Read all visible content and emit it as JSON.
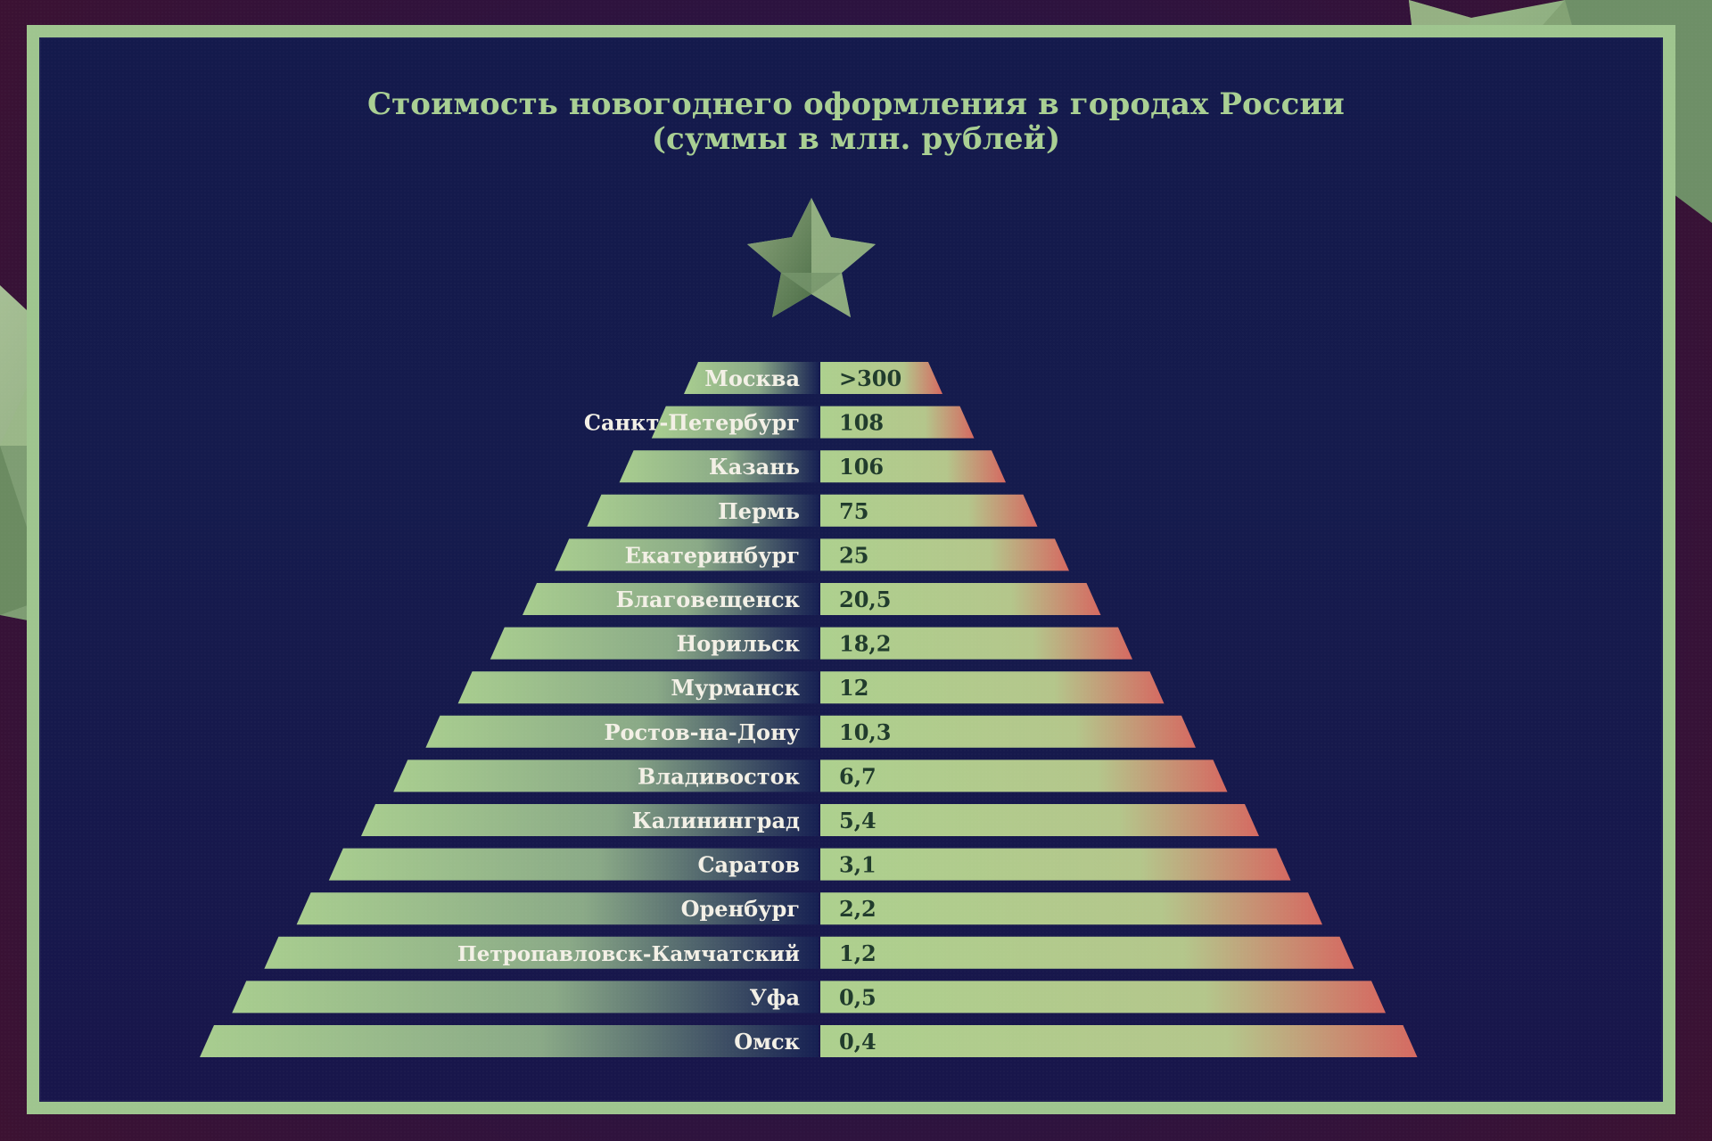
{
  "chart_data": {
    "type": "bar",
    "title": "Стоимость новогоднего оформления в городах России",
    "subtitle": "(суммы в млн. рублей)",
    "categories": [
      "Москва",
      "Санкт-Петербург",
      "Казань",
      "Пермь",
      "Екатеринбург",
      "Благовещенск",
      "Норильск",
      "Мурманск",
      "Ростов-на-Дону",
      "Владивосток",
      "Калининград",
      "Саратов",
      "Оренбург",
      "Петропавловск-Камчатский",
      "Уфа",
      "Омск"
    ],
    "values": [
      ">300",
      "108",
      "106",
      "75",
      "25",
      "20,5",
      "18,2",
      "12",
      "10,3",
      "6,7",
      "5,4",
      "3,1",
      "2,2",
      "1,2",
      "0,5",
      "0,4"
    ],
    "colors": {
      "accent": "#a9cf93",
      "dark_navy": "#141a4c",
      "value_text": "#203b2c",
      "label_text": "#f3f0e6",
      "warm_accent": "#d6675f"
    }
  }
}
